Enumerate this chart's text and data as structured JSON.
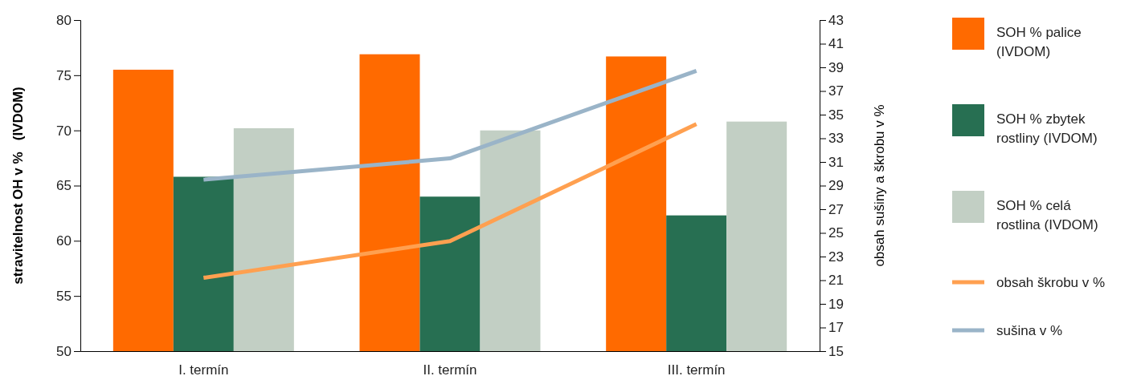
{
  "chart_data": {
    "type": "bar",
    "ylabel": "stravitelnost OH v %   (IVDOM)",
    "y2label": "obsah sušiny a škrobu v %",
    "categories": [
      "I. termín",
      "II. termín",
      "III. termín"
    ],
    "series": [
      {
        "name": "SOH % palice (IVDOM)",
        "color": "#ff6a00",
        "values": [
          75.5,
          76.9,
          76.7
        ]
      },
      {
        "name": "SOH % zbytek rostliny (IVDOM)",
        "color": "#276f52",
        "values": [
          65.8,
          64.0,
          62.3
        ]
      },
      {
        "name": "SOH % celá rostlina (IVDOM)",
        "color": "#c2cfc4",
        "values": [
          70.2,
          70.0,
          70.8
        ]
      },
      {
        "name": "obsah škrobu v %",
        "type": "line",
        "axis": "y2",
        "color": "#ffa050",
        "values": [
          21.2,
          24.3,
          34.2
        ]
      },
      {
        "name": "sušina v %",
        "type": "line",
        "axis": "y2",
        "color": "#9ab4c8",
        "values": [
          29.5,
          31.3,
          38.7
        ]
      }
    ],
    "ylim": [
      50,
      80
    ],
    "yticks": [
      50,
      55,
      60,
      65,
      70,
      75,
      80
    ],
    "y2lim": [
      15,
      43
    ],
    "y2ticks": [
      15,
      17,
      19,
      21,
      23,
      25,
      27,
      29,
      31,
      33,
      35,
      37,
      39,
      41,
      43
    ],
    "grid": false,
    "legend": "right",
    "marker": "none",
    "line_style": "solid"
  }
}
